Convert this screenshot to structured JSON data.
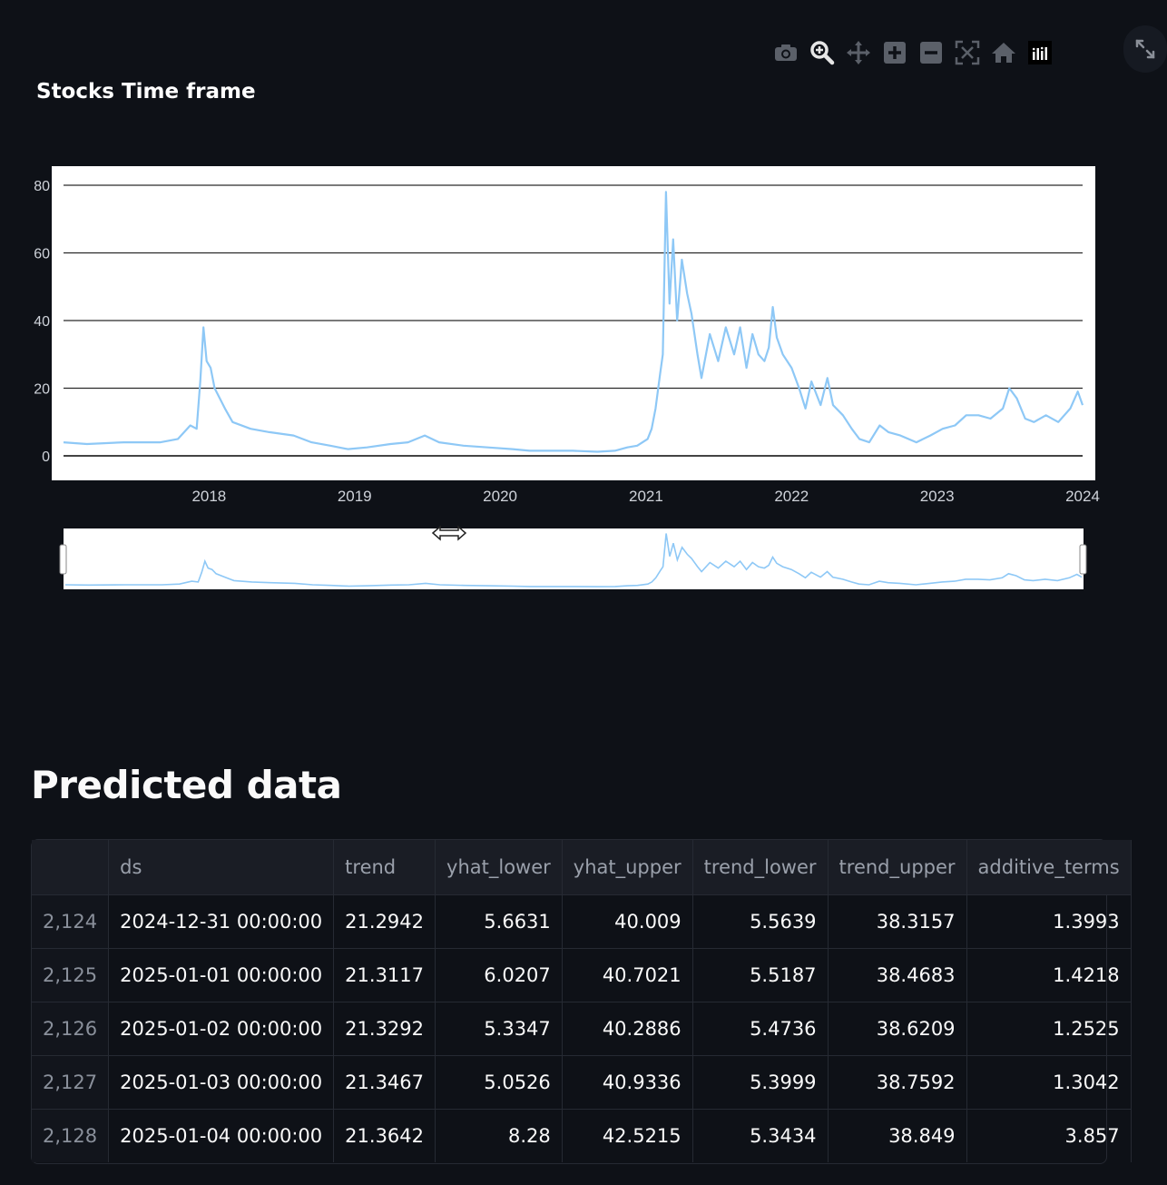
{
  "toolbar": {
    "icons": [
      "camera-icon",
      "zoom-icon",
      "pan-icon",
      "zoom-in-icon",
      "zoom-out-icon",
      "autoscale-icon",
      "home-icon",
      "plotly-logo-icon"
    ],
    "expand_icon": "expand-icon"
  },
  "chart_title": "Stocks Time frame",
  "chart_data": {
    "type": "line",
    "title": "Stocks Time frame",
    "xlabel": "",
    "ylabel": "",
    "x_range": [
      "2017-01-01",
      "2024-01-01"
    ],
    "ylim": [
      -3,
      82
    ],
    "yticks": [
      0,
      20,
      40,
      60,
      80
    ],
    "xticks": [
      "2018",
      "2019",
      "2020",
      "2021",
      "2022",
      "2023",
      "2024"
    ],
    "grid": true,
    "line_color": "#8ec8f6",
    "range_slider": true,
    "series": [
      {
        "x": [
          "2017-01-01",
          "2017-03-01",
          "2017-06-01",
          "2017-09-01",
          "2017-10-15",
          "2017-11-15",
          "2017-12-01",
          "2017-12-10",
          "2017-12-18",
          "2017-12-26",
          "2018-01-05",
          "2018-01-15",
          "2018-02-10",
          "2018-03-01",
          "2018-04-15",
          "2018-06-01",
          "2018-08-01",
          "2018-09-15",
          "2018-11-01",
          "2018-12-15",
          "2019-02-01",
          "2019-04-01",
          "2019-05-15",
          "2019-06-26",
          "2019-08-01",
          "2019-10-01",
          "2019-12-01",
          "2020-02-01",
          "2020-03-15",
          "2020-05-01",
          "2020-07-01",
          "2020-09-01",
          "2020-10-15",
          "2020-11-15",
          "2020-12-10",
          "2021-01-05",
          "2021-01-15",
          "2021-01-25",
          "2021-02-05",
          "2021-02-12",
          "2021-02-20",
          "2021-03-01",
          "2021-03-10",
          "2021-03-20",
          "2021-04-01",
          "2021-04-14",
          "2021-04-25",
          "2021-05-10",
          "2021-05-20",
          "2021-06-10",
          "2021-07-01",
          "2021-07-20",
          "2021-08-10",
          "2021-08-25",
          "2021-09-10",
          "2021-09-25",
          "2021-10-10",
          "2021-10-25",
          "2021-11-05",
          "2021-11-15",
          "2021-11-25",
          "2021-12-10",
          "2022-01-01",
          "2022-01-20",
          "2022-02-05",
          "2022-02-20",
          "2022-03-15",
          "2022-04-01",
          "2022-04-15",
          "2022-05-10",
          "2022-06-01",
          "2022-06-20",
          "2022-07-15",
          "2022-08-10",
          "2022-09-01",
          "2022-10-01",
          "2022-11-10",
          "2022-12-15",
          "2023-01-15",
          "2023-02-15",
          "2023-03-15",
          "2023-04-15",
          "2023-05-15",
          "2023-06-15",
          "2023-07-01",
          "2023-07-20",
          "2023-08-10",
          "2023-09-01",
          "2023-10-01",
          "2023-11-01",
          "2023-12-01",
          "2023-12-20",
          "2024-01-01"
        ],
        "y": [
          4,
          3.5,
          4,
          4,
          5,
          9,
          8,
          22,
          38,
          28,
          26,
          20,
          14,
          10,
          8,
          7,
          6,
          4,
          3,
          2,
          2.5,
          3.5,
          4,
          6,
          4,
          3,
          2.5,
          2,
          1.5,
          1.5,
          1.5,
          1.2,
          1.5,
          2.5,
          3,
          5,
          8,
          14,
          24,
          30,
          78,
          45,
          64,
          40,
          58,
          48,
          42,
          30,
          23,
          36,
          28,
          38,
          30,
          38,
          26,
          36,
          30,
          28,
          32,
          44,
          35,
          30,
          26,
          20,
          14,
          22,
          15,
          23,
          15,
          12,
          8,
          5,
          4,
          9,
          7,
          6,
          4,
          6,
          8,
          9,
          12,
          12,
          11,
          14,
          20,
          17,
          11,
          10,
          12,
          10,
          14,
          19,
          15
        ]
      }
    ]
  },
  "section_title": "Predicted data",
  "table": {
    "columns": [
      "",
      "ds",
      "trend",
      "yhat_lower",
      "yhat_upper",
      "trend_lower",
      "trend_upper",
      "additive_terms"
    ],
    "rows": [
      [
        "2,124",
        "2024-12-31 00:00:00",
        "21.2942",
        "5.6631",
        "40.009",
        "5.5639",
        "38.3157",
        "1.3993"
      ],
      [
        "2,125",
        "2025-01-01 00:00:00",
        "21.3117",
        "6.0207",
        "40.7021",
        "5.5187",
        "38.4683",
        "1.4218"
      ],
      [
        "2,126",
        "2025-01-02 00:00:00",
        "21.3292",
        "5.3347",
        "40.2886",
        "5.4736",
        "38.6209",
        "1.2525"
      ],
      [
        "2,127",
        "2025-01-03 00:00:00",
        "21.3467",
        "5.0526",
        "40.9336",
        "5.3999",
        "38.7592",
        "1.3042"
      ],
      [
        "2,128",
        "2025-01-04 00:00:00",
        "21.3642",
        "8.28",
        "42.5215",
        "5.3434",
        "38.849",
        "3.857"
      ]
    ]
  }
}
